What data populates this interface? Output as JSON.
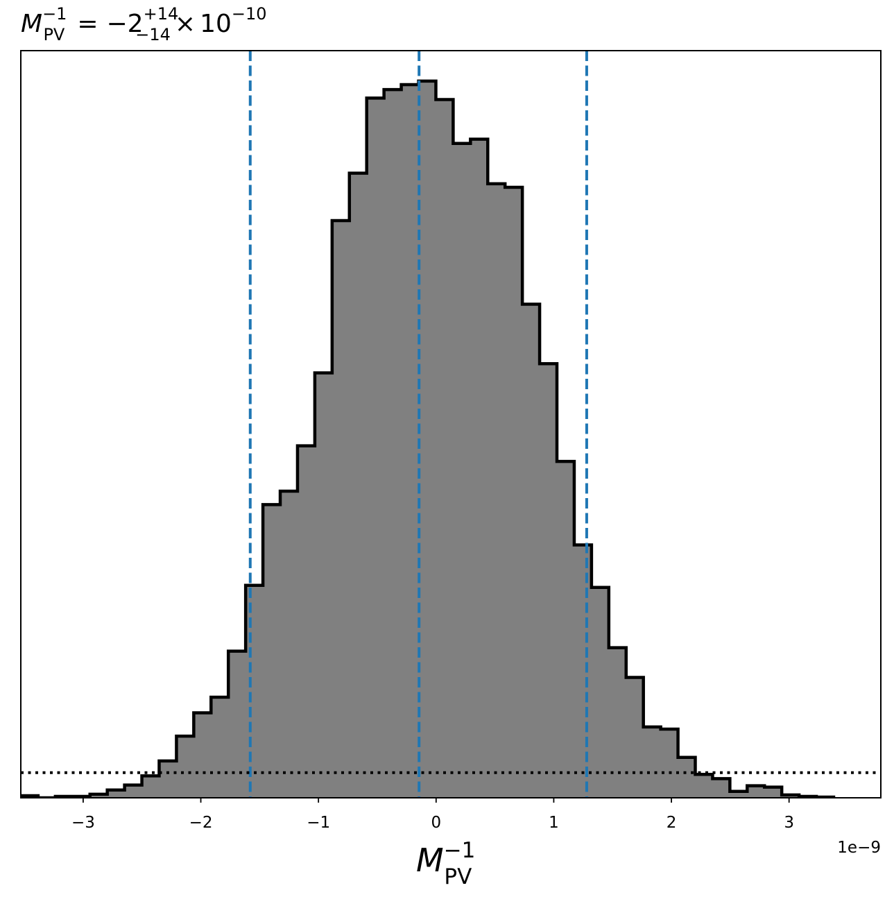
{
  "chart_data": {
    "type": "histogram",
    "title": {
      "lhs": "M",
      "lhs_sub": "PV",
      "lhs_sup": "−1",
      "equals": "=",
      "value": "−2",
      "err_plus": "+14",
      "err_minus": "−14",
      "times": "×",
      "base": "10",
      "exponent": "−10"
    },
    "xlabel": {
      "main": "M",
      "sub": "PV",
      "sup": "−1"
    },
    "offset_text": "1e−9",
    "x_scale": 1e-09,
    "xlim": [
      -3.53,
      3.78
    ],
    "ylim": [
      0,
      1.055
    ],
    "xticks": [
      -3,
      -2,
      -1,
      0,
      1,
      2,
      3
    ],
    "xtick_labels": [
      "−3",
      "−2",
      "−1",
      "0",
      "1",
      "2",
      "3"
    ],
    "yticks_visible": false,
    "grid": false,
    "fill_color": "#808080",
    "edge_color": "#000000",
    "bins": {
      "edges": [
        -3.53,
        -3.383,
        -3.236,
        -3.089,
        -2.942,
        -2.795,
        -2.648,
        -2.501,
        -2.354,
        -2.207,
        -2.06,
        -1.913,
        -1.766,
        -1.619,
        -1.472,
        -1.325,
        -1.178,
        -1.031,
        -0.884,
        -0.737,
        -0.59,
        -0.443,
        -0.296,
        -0.149,
        -0.002,
        0.145,
        0.292,
        0.439,
        0.586,
        0.733,
        0.88,
        1.027,
        1.174,
        1.321,
        1.468,
        1.615,
        1.762,
        1.909,
        2.056,
        2.203,
        2.35,
        2.497,
        2.644,
        2.791,
        2.938,
        3.085,
        3.232,
        3.379
      ],
      "counts": [
        0.003,
        0.0,
        0.002,
        0.002,
        0.005,
        0.011,
        0.018,
        0.031,
        0.052,
        0.087,
        0.12,
        0.142,
        0.207,
        0.3,
        0.414,
        0.433,
        0.497,
        0.6,
        0.815,
        0.882,
        0.988,
        1.0,
        1.007,
        1.012,
        0.986,
        0.924,
        0.93,
        0.867,
        0.862,
        0.697,
        0.613,
        0.475,
        0.357,
        0.297,
        0.212,
        0.17,
        0.1,
        0.097,
        0.057,
        0.033,
        0.027,
        0.009,
        0.017,
        0.015,
        0.004,
        0.002,
        0.001
      ]
    },
    "vlines": {
      "color": "#1f77b4",
      "style": "dashed",
      "x": [
        -1.58,
        -0.145,
        1.28
      ]
    },
    "hline": {
      "color": "#000000",
      "style": "dotted",
      "y": 0.0355
    }
  }
}
